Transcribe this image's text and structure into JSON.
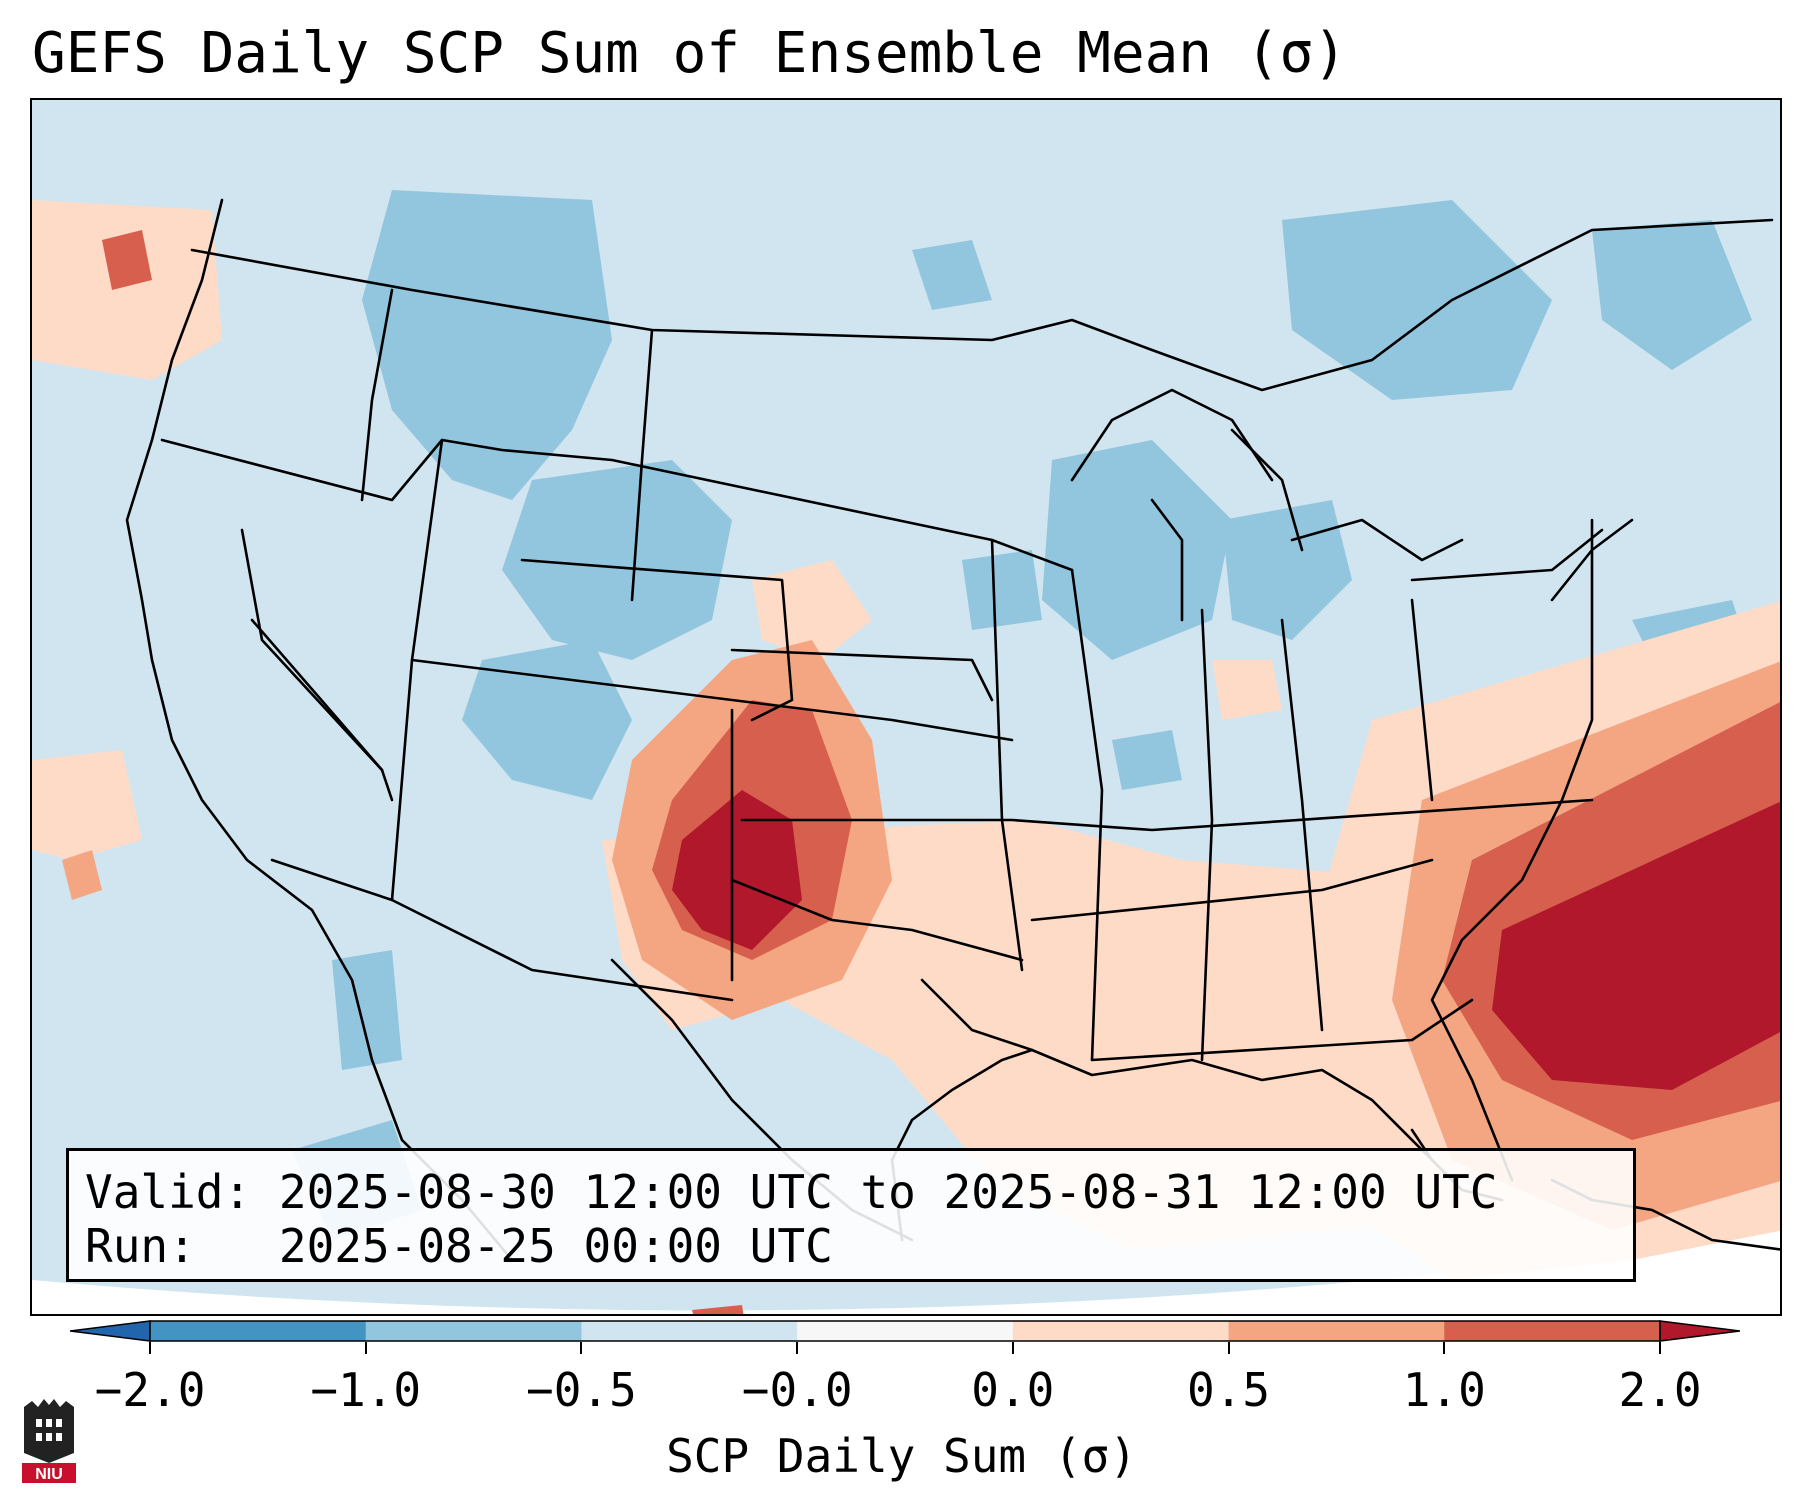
{
  "title": "GEFS Daily SCP Sum of Ensemble Mean (σ)",
  "info": {
    "valid_label": "Valid:",
    "valid_value": "2025-08-30 12:00 UTC to 2025-08-31 12:00 UTC",
    "run_label": "Run:",
    "run_value": "2025-08-25 00:00 UTC"
  },
  "colorbar": {
    "label": "SCP Daily Sum (σ)",
    "ticks": [
      "−2.0",
      "−1.0",
      "−0.5",
      "−0.0",
      "0.0",
      "0.5",
      "1.0",
      "2.0"
    ],
    "bin_colors": [
      "#4393c3",
      "#92c5de",
      "#d1e5f0",
      "#f7f7f7",
      "#fddbc7",
      "#f4a582",
      "#d6604d"
    ],
    "under_color": "#2166ac",
    "over_color": "#b2182b"
  },
  "map": {
    "region": "Continental United States",
    "background_color": "#d1e5f0",
    "anomaly_areas": [
      {
        "name": "Southern High Plains maximum",
        "level": "> 2.0"
      },
      {
        "name": "Southeast coast and western Atlantic maximum",
        "level": "> 2.0"
      },
      {
        "name": "Gulf Coast states",
        "level": "0.0 to 0.5"
      },
      {
        "name": "Northern Rockies and Upper Midwest",
        "level": "-1.0 to -0.5"
      }
    ]
  },
  "logo": {
    "text": "NIU"
  }
}
